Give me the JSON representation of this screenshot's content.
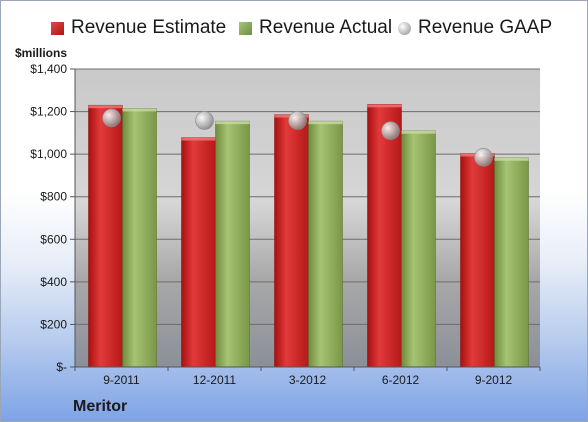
{
  "chart_data": {
    "type": "bar",
    "categories": [
      "9-2011",
      "12-2011",
      "3-2012",
      "6-2012",
      "9-2012"
    ],
    "series": [
      {
        "name": "Revenue Estimate",
        "values": [
          1230,
          1078,
          1186,
          1234,
          1003
        ]
      },
      {
        "name": "Revenue Actual",
        "values": [
          1215,
          1155,
          1155,
          1110,
          983
        ]
      },
      {
        "name": "Revenue GAAP",
        "values": [
          1170,
          1158,
          1158,
          1110,
          985
        ]
      }
    ],
    "ylabel": "$millions",
    "ylim": [
      0,
      1400
    ],
    "yticks": [
      0,
      200,
      400,
      600,
      800,
      1000,
      1200,
      1400
    ],
    "ytick_labels": [
      "$-",
      "$200",
      "$400",
      "$600",
      "$800",
      "$1,000",
      "$1,200",
      "$1,400"
    ],
    "grid": true,
    "legend_position": "top",
    "colors": {
      "estimate": "#c42020",
      "actual": "#8aab55",
      "gaap": "#b0b0b0"
    }
  },
  "footer": {
    "company": "Meritor"
  }
}
